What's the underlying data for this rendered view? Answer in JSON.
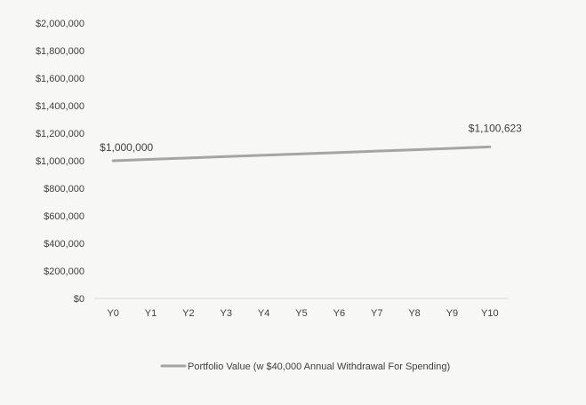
{
  "chart_data": {
    "type": "line",
    "title": "",
    "xlabel": "",
    "ylabel": "",
    "categories": [
      "Y0",
      "Y1",
      "Y2",
      "Y3",
      "Y4",
      "Y5",
      "Y6",
      "Y7",
      "Y8",
      "Y9",
      "Y10"
    ],
    "ylim": [
      0,
      2000000
    ],
    "y_ticks": [
      0,
      200000,
      400000,
      600000,
      800000,
      1000000,
      1200000,
      1400000,
      1600000,
      1800000,
      2000000
    ],
    "y_tick_labels": [
      "$0",
      "$200,000",
      "$400,000",
      "$600,000",
      "$800,000",
      "$1,000,000",
      "$1,200,000",
      "$1,400,000",
      "$1,600,000",
      "$1,800,000",
      "$2,000,000"
    ],
    "grid": false,
    "legend_position": "bottom",
    "series": [
      {
        "name": "Portfolio Value (w $40,000 Annual Withdrawal For Spending)",
        "color": "#a5a5a5",
        "values": [
          1000000,
          1010000,
          1020000,
          1030000,
          1040000,
          1050000,
          1060000,
          1070000,
          1080000,
          1090000,
          1100623
        ]
      }
    ],
    "annotations": [
      {
        "category": "Y0",
        "text": "$1,000,000"
      },
      {
        "category": "Y10",
        "text": "$1,100,623"
      }
    ],
    "colors": {
      "background": "#f7f7f6",
      "text": "#404040",
      "axis": "#d9d9d9"
    }
  }
}
